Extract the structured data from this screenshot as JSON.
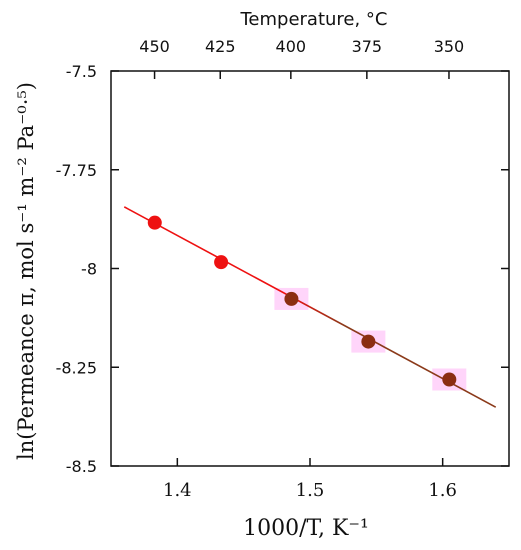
{
  "chart_data": {
    "type": "scatter",
    "xlabel": "1000/T, K⁻¹",
    "ylabel": "ln(Permeance π, mol s⁻¹ m⁻² Pa⁻⁰·⁵)",
    "top_axis_title": "Temperature, °C",
    "xlim": [
      1.35,
      1.65
    ],
    "ylim": [
      -8.5,
      -7.5
    ],
    "xticks": [
      1.4,
      1.5,
      1.6
    ],
    "xtick_labels": [
      "1.4",
      "1.5",
      "1.6"
    ],
    "yticks": [
      -7.5,
      -7.75,
      -8,
      -8.25,
      -8.5
    ],
    "ytick_labels": [
      "-7.5",
      "-7.75",
      "-8",
      "-8.25",
      "-8.5"
    ],
    "top_ticks_celsius": [
      450,
      425,
      400,
      375,
      350
    ],
    "top_tick_labels": [
      "450",
      "425",
      "400",
      "375",
      "350"
    ],
    "points": [
      {
        "x": 1.383,
        "y": -7.884,
        "color": "#ee1111"
      },
      {
        "x": 1.433,
        "y": -7.984,
        "color": "#ee1111"
      },
      {
        "x": 1.486,
        "y": -8.077,
        "color": "#8b2e12"
      },
      {
        "x": 1.544,
        "y": -8.185,
        "color": "#8b2e12"
      },
      {
        "x": 1.605,
        "y": -8.281,
        "color": "#8b2e12"
      }
    ],
    "fit_line": {
      "x_start": 1.36,
      "y_start": -7.844,
      "x_mid": 1.46,
      "y_mid": -8.025,
      "x_end": 1.64,
      "y_end": -8.351,
      "color_start": "#ee1111",
      "color_end": "#8b3a1a"
    },
    "grid": false,
    "colors": {
      "highlight": "#ffb3f5",
      "axis": "#111111"
    }
  }
}
